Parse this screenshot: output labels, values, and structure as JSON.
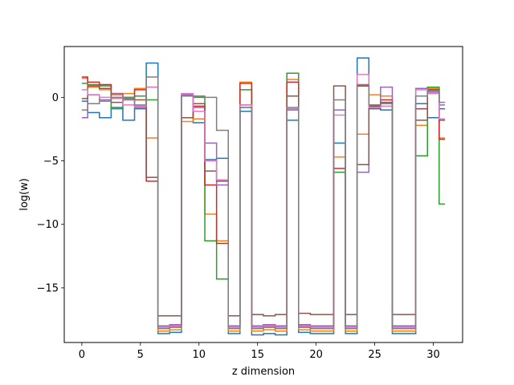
{
  "chart_data": {
    "type": "line",
    "style": "step",
    "title": "",
    "xlabel": "z dimension",
    "ylabel": "log(w)",
    "xlim": [
      -1.5,
      32.5
    ],
    "ylim": [
      -19.3,
      4.0
    ],
    "xticks": [
      0,
      5,
      10,
      15,
      20,
      25,
      30
    ],
    "yticks": [
      0,
      -5,
      -10,
      -15
    ],
    "grid": false,
    "legend": "none",
    "series": [
      {
        "color": "#1f77b4",
        "values": [
          -0.3,
          -1.2,
          -1.6,
          -0.8,
          -1.8,
          -0.9,
          2.7,
          -18.6,
          -18.5,
          0.2,
          -2.0,
          -4.9,
          -4.8,
          -18.6,
          -1.1,
          -18.7,
          -18.6,
          -18.7,
          -1.8,
          -18.5,
          -18.6,
          -18.6,
          -3.6,
          -18.6,
          3.1,
          -0.9,
          -1.0,
          -18.6,
          -18.6,
          -0.5,
          -1.6,
          -0.9
        ]
      },
      {
        "color": "#ff7f0e",
        "values": [
          1.5,
          0.8,
          0.6,
          0.2,
          0.3,
          0.7,
          -3.2,
          -18.4,
          -18.3,
          -1.9,
          -1.7,
          -9.2,
          -11.3,
          -18.4,
          1.2,
          -18.4,
          -18.3,
          -18.4,
          1.4,
          -18.3,
          -18.4,
          -18.4,
          -4.7,
          -18.4,
          -2.9,
          0.2,
          0.1,
          -18.4,
          -18.4,
          -2.2,
          0.7,
          -3.2
        ]
      },
      {
        "color": "#2ca02c",
        "values": [
          1.1,
          1.0,
          0.9,
          -0.9,
          -0.1,
          0.1,
          -0.2,
          -18.2,
          -18.1,
          0.1,
          0.0,
          -11.3,
          -14.3,
          -18.2,
          0.6,
          -18.2,
          -18.1,
          -18.2,
          1.9,
          -18.1,
          -18.2,
          -18.2,
          -5.9,
          -18.2,
          0.9,
          -0.7,
          -0.5,
          -18.2,
          -18.2,
          -4.6,
          0.8,
          -8.4
        ]
      },
      {
        "color": "#d62728",
        "values": [
          1.6,
          1.2,
          1.0,
          0.3,
          0.0,
          0.6,
          -6.6,
          -18.0,
          -17.9,
          -1.6,
          -0.7,
          -6.9,
          -11.5,
          -18.0,
          1.1,
          -18.0,
          -17.9,
          -18.0,
          1.2,
          -17.9,
          -18.0,
          -18.0,
          -5.6,
          -18.0,
          0.9,
          -0.6,
          -0.2,
          -18.0,
          -18.0,
          -0.9,
          0.6,
          -3.3
        ]
      },
      {
        "color": "#9467bd",
        "values": [
          -1.6,
          0.2,
          -0.2,
          0.3,
          -0.2,
          -0.8,
          0.8,
          -18.0,
          -17.9,
          0.2,
          -0.8,
          -3.6,
          -6.9,
          -18.0,
          -0.8,
          -18.0,
          -17.9,
          -18.0,
          -1.0,
          -17.9,
          -18.0,
          -18.0,
          -1.0,
          -18.0,
          -5.9,
          -0.8,
          0.8,
          -18.0,
          -18.0,
          0.7,
          0.4,
          -0.6
        ]
      },
      {
        "color": "#8c564b",
        "values": [
          -0.1,
          0.9,
          0.7,
          -0.4,
          0.0,
          -0.2,
          -6.3,
          -17.2,
          -17.2,
          -1.6,
          -0.5,
          -5.8,
          -6.6,
          -17.2,
          -0.6,
          -17.1,
          -17.2,
          -17.1,
          0.1,
          -17.0,
          -17.1,
          -17.1,
          0.9,
          -17.1,
          -5.3,
          -0.7,
          -0.4,
          -17.1,
          -17.1,
          -1.8,
          0.6,
          -1.8
        ]
      },
      {
        "color": "#e377c2",
        "values": [
          0.6,
          0.2,
          0.0,
          -0.1,
          -0.6,
          -0.7,
          0.8,
          -18.1,
          -18.0,
          0.3,
          -1.1,
          -5.0,
          -6.5,
          -18.1,
          -0.6,
          -18.1,
          -18.0,
          -18.1,
          -0.9,
          -18.0,
          -18.1,
          -18.1,
          -1.4,
          -18.1,
          1.8,
          -0.8,
          -0.7,
          -18.1,
          -18.1,
          0.6,
          0.3,
          -1.7
        ]
      },
      {
        "color": "#7f7f7f",
        "values": [
          -1.0,
          -0.5,
          -0.3,
          0.0,
          0.0,
          -0.6,
          1.6,
          -18.2,
          -18.1,
          0.1,
          0.1,
          0.0,
          -2.6,
          -18.2,
          -0.8,
          -18.2,
          -18.1,
          -18.2,
          -0.8,
          -18.1,
          -18.2,
          -18.2,
          -0.2,
          -18.2,
          1.0,
          -0.6,
          -0.5,
          -18.2,
          -18.2,
          0.1,
          0.5,
          -0.4
        ]
      }
    ]
  }
}
